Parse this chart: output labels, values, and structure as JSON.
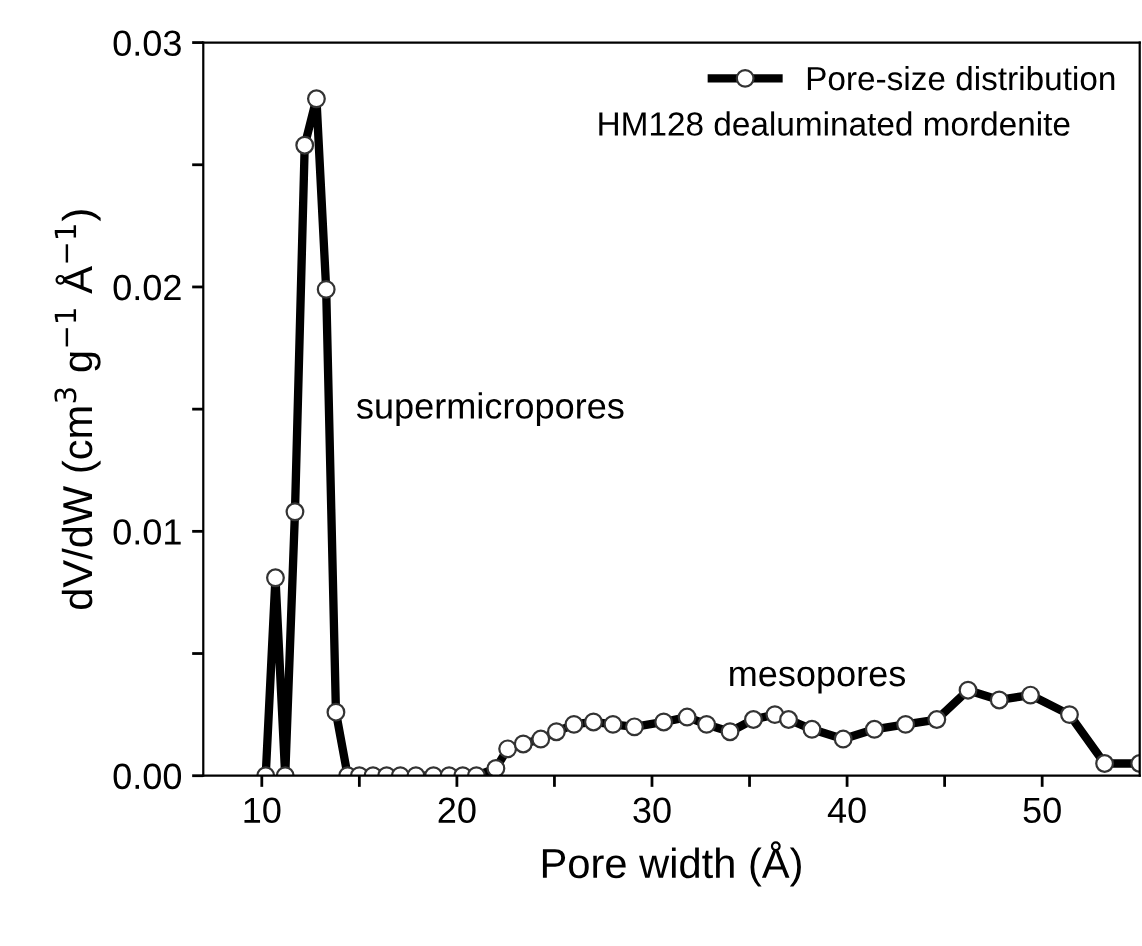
{
  "chart_data": {
    "type": "line",
    "xlabel": "Pore width (Å)",
    "ylabel": "dV/dW (cm$^{3}$ g$^{−1}$ Å$^{−1}$)",
    "xlim": [
      7,
      55
    ],
    "ylim": [
      0,
      0.03
    ],
    "xticks": [
      10,
      {
        "value": 15,
        "label": null
      },
      20,
      {
        "value": 25,
        "label": null
      },
      30,
      {
        "value": 35,
        "label": null
      },
      40,
      {
        "value": 45,
        "label": null
      },
      50
    ],
    "yticks": [
      {
        "value": 0,
        "label": "0.00"
      },
      {
        "value": 0.005,
        "label": null
      },
      0.01,
      {
        "value": 0.015,
        "label": null
      },
      0.02,
      {
        "value": 0.025,
        "label": null
      },
      0.03
    ],
    "marker": "circle",
    "line_style": "solid",
    "grid": false,
    "legend": "top right",
    "legend_title": "HM128 dealuminated mordenite",
    "annotations": [
      "supermicropores",
      "mesopores"
    ],
    "series": [
      {
        "name": "Pore-size distribution",
        "color": "#000000",
        "x": [
          10.2,
          10.7,
          11.2,
          11.7,
          12.2,
          12.8,
          13.3,
          13.8,
          14.4,
          15.0,
          15.7,
          16.4,
          17.1,
          17.9,
          18.8,
          19.6,
          20.3,
          21.0,
          22.0,
          22.6,
          23.4,
          24.3,
          25.1,
          26.0,
          27.0,
          28.0,
          29.1,
          30.6,
          31.8,
          32.8,
          34.0,
          35.2,
          36.3,
          37.0,
          38.2,
          39.8,
          41.4,
          43.0,
          44.6,
          46.2,
          47.8,
          49.4,
          51.4,
          53.2,
          55.0
        ],
        "values": [
          0,
          0.0081,
          0,
          0.0108,
          0.0258,
          0.0277,
          0.0199,
          0.0026,
          0,
          0,
          0,
          0,
          0,
          0,
          0,
          0,
          0,
          0,
          0.0003,
          0.0011,
          0.0013,
          0.0015,
          0.0018,
          0.0021,
          0.0022,
          0.0021,
          0.002,
          0.0022,
          0.0024,
          0.0021,
          0.0018,
          0.0023,
          0.0025,
          0.0023,
          0.0019,
          0.0015,
          0.0019,
          0.0021,
          0.0023,
          0.0035,
          0.0031,
          0.0033,
          0.0025,
          0.0005,
          0.0005
        ]
      }
    ]
  }
}
